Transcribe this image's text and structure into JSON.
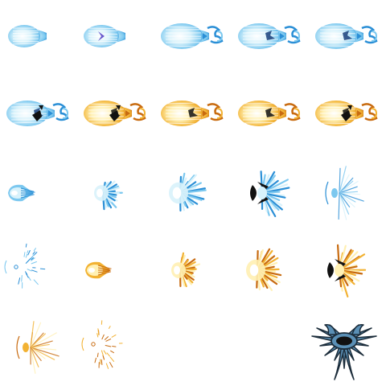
{
  "sheet": {
    "columns": 5,
    "rows": 5,
    "palette": {
      "blue_light": "#d8f2fb",
      "blue_mid": "#7cc8ef",
      "blue_deep": "#2b8fd6",
      "blue_dark": "#1a3f7a",
      "violet": "#6a5acd",
      "orange_light": "#fff0b3",
      "orange_mid": "#f2b233",
      "orange_deep": "#c86b10",
      "ink": "#111111",
      "spiky_fill": "#5a8fb5",
      "spiky_outline": "#1b2c3a"
    },
    "frames": [
      {
        "kind": "comet",
        "scheme": "blue",
        "variant": 0,
        "icon": "blue-energy-orb-icon"
      },
      {
        "kind": "comet",
        "scheme": "blue",
        "variant": 1,
        "icon": "blue-energy-orb-core-icon"
      },
      {
        "kind": "comet",
        "scheme": "blue",
        "variant": 2,
        "icon": "blue-comet-trail-icon"
      },
      {
        "kind": "comet",
        "scheme": "blue",
        "variant": 3,
        "icon": "blue-comet-trail-icon"
      },
      {
        "kind": "comet",
        "scheme": "blue",
        "variant": 3,
        "icon": "blue-comet-trail-icon"
      },
      {
        "kind": "comet",
        "scheme": "blue",
        "variant": 4,
        "icon": "blue-comet-dark-icon"
      },
      {
        "kind": "comet",
        "scheme": "orange",
        "variant": 4,
        "icon": "orange-comet-dark-icon"
      },
      {
        "kind": "comet",
        "scheme": "orange",
        "variant": 3,
        "icon": "orange-comet-trail-icon"
      },
      {
        "kind": "comet",
        "scheme": "orange",
        "variant": 3,
        "icon": "orange-comet-trail-icon"
      },
      {
        "kind": "comet",
        "scheme": "orange",
        "variant": 4,
        "icon": "orange-comet-dark-icon"
      },
      {
        "kind": "small",
        "scheme": "blue",
        "variant": 0,
        "icon": "blue-spark-icon"
      },
      {
        "kind": "burst",
        "scheme": "blue",
        "variant": 0,
        "icon": "blue-burst-icon"
      },
      {
        "kind": "burst",
        "scheme": "blue",
        "variant": 1,
        "icon": "blue-burst-large-icon"
      },
      {
        "kind": "burst",
        "scheme": "blue",
        "variant": 2,
        "icon": "blue-burst-dark-icon"
      },
      {
        "kind": "burst",
        "scheme": "blue",
        "variant": 3,
        "icon": "blue-burst-fading-icon"
      },
      {
        "kind": "fade",
        "scheme": "blue",
        "variant": 0,
        "icon": "blue-dissipate-icon"
      },
      {
        "kind": "small",
        "scheme": "orange",
        "variant": 0,
        "icon": "orange-spark-icon"
      },
      {
        "kind": "burst",
        "scheme": "orange",
        "variant": 0,
        "icon": "orange-burst-icon"
      },
      {
        "kind": "burst",
        "scheme": "orange",
        "variant": 1,
        "icon": "orange-burst-large-icon"
      },
      {
        "kind": "burst",
        "scheme": "orange",
        "variant": 2,
        "icon": "orange-burst-dark-icon"
      },
      {
        "kind": "burst",
        "scheme": "orange",
        "variant": 3,
        "icon": "orange-burst-fading-icon"
      },
      {
        "kind": "fade",
        "scheme": "orange",
        "variant": 0,
        "icon": "orange-dissipate-icon"
      },
      {
        "kind": "empty",
        "scheme": "none",
        "variant": 0,
        "icon": "empty-cell-icon"
      },
      {
        "kind": "empty",
        "scheme": "none",
        "variant": 0,
        "icon": "empty-cell-icon"
      },
      {
        "kind": "spiky",
        "scheme": "steel",
        "variant": 0,
        "icon": "spiked-portal-icon"
      }
    ]
  }
}
